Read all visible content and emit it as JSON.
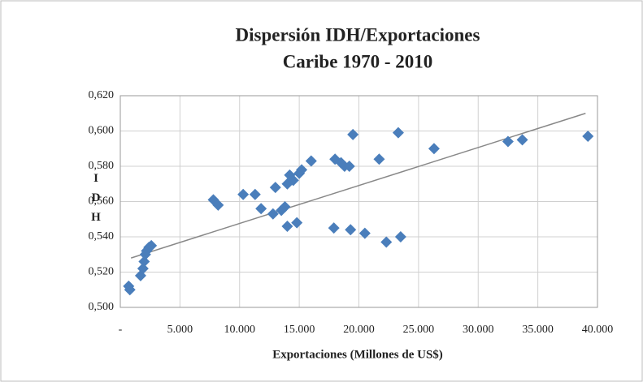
{
  "chart_data": {
    "type": "scatter",
    "title": [
      "Dispersión IDH/Exportaciones",
      "Caribe 1970 - 2010"
    ],
    "x_label": "Exportaciones (Millones de US$)",
    "y_label": "IDH",
    "xlim": [
      0,
      40000
    ],
    "xticks": [
      {
        "value": 0,
        "label": "-"
      },
      {
        "value": 5000,
        "label": "5.000"
      },
      {
        "value": 10000,
        "label": "10.000"
      },
      {
        "value": 15000,
        "label": "15.000"
      },
      {
        "value": 20000,
        "label": "20.000"
      },
      {
        "value": 25000,
        "label": "25.000"
      },
      {
        "value": 30000,
        "label": "30.000"
      },
      {
        "value": 35000,
        "label": "35.000"
      },
      {
        "value": 40000,
        "label": "40.000"
      }
    ],
    "ylim": [
      0.5,
      0.62
    ],
    "yticks": [
      {
        "value": 0.5,
        "label": "0,500"
      },
      {
        "value": 0.52,
        "label": "0,520"
      },
      {
        "value": 0.54,
        "label": "0,540"
      },
      {
        "value": 0.56,
        "label": "0,560"
      },
      {
        "value": 0.58,
        "label": "0,580"
      },
      {
        "value": 0.6,
        "label": "0,600"
      },
      {
        "value": 0.62,
        "label": "0,620"
      }
    ],
    "grid": true,
    "color": "#4a7ebb",
    "x": [
      800,
      700,
      1700,
      1900,
      2000,
      2100,
      2200,
      2400,
      2600,
      7800,
      8200,
      10300,
      11300,
      11800,
      12800,
      13000,
      13500,
      13800,
      14000,
      14000,
      14200,
      14500,
      14800,
      15000,
      15200,
      16000,
      17900,
      18000,
      18500,
      18800,
      19200,
      19300,
      19500,
      20500,
      21700,
      22300,
      23300,
      23500,
      26300,
      32500,
      33700,
      39200
    ],
    "y": [
      0.51,
      0.512,
      0.518,
      0.522,
      0.526,
      0.53,
      0.532,
      0.534,
      0.535,
      0.561,
      0.558,
      0.564,
      0.564,
      0.556,
      0.553,
      0.568,
      0.555,
      0.557,
      0.57,
      0.546,
      0.575,
      0.572,
      0.548,
      0.576,
      0.578,
      0.583,
      0.545,
      0.584,
      0.582,
      0.58,
      0.58,
      0.544,
      0.598,
      0.542,
      0.584,
      0.537,
      0.599,
      0.54,
      0.59,
      0.594,
      0.595,
      0.597
    ],
    "trendline": {
      "color": "#888888",
      "x": [
        900,
        39000
      ],
      "y": [
        0.528,
        0.61
      ]
    }
  }
}
